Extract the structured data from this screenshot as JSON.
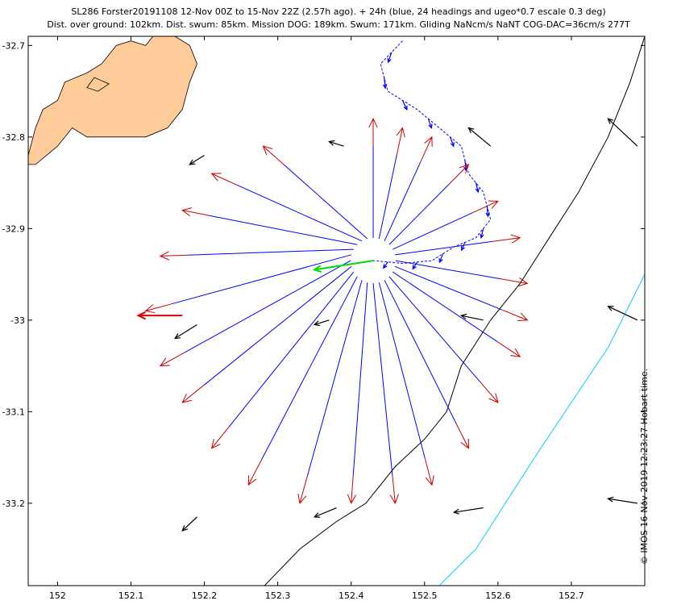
{
  "title_line1": "SL286 Forster20191108 12-Nov 00Z to 15-Nov 22Z (2.57h ago). + 24h (blue, 24 headings and ugeo*0.7 escale 0.3 deg)",
  "title_line2": "Dist. over ground: 102km. Dist. swum: 85km. Mission DOG: 189km. Swum: 171km. Gliding NaNcm/s NaNT COG-DAC=36cm/s 277T",
  "credit": "© IMOS 16-Nov-2019 12:23:27 Hobart time.",
  "colors": {
    "land": "#FFCC99",
    "track": "#0000FF",
    "arrow_tip": "#CC0000",
    "current_arrow": "#000000",
    "contour_black": "#000000",
    "contour_cyan": "#00CCFF",
    "latest_heading": "#00DD00",
    "best_heading": "#DD0000"
  },
  "chart_data": {
    "type": "map-vector-plot",
    "xlim": [
      151.96,
      152.8
    ],
    "ylim": [
      -33.29,
      -32.69
    ],
    "x_ticks": [
      {
        "value": 152.0,
        "label": "152"
      },
      {
        "value": 152.1,
        "label": "152.1"
      },
      {
        "value": 152.2,
        "label": "152.2"
      },
      {
        "value": 152.3,
        "label": "152.3"
      },
      {
        "value": 152.4,
        "label": "152.4"
      },
      {
        "value": 152.5,
        "label": "152.5"
      },
      {
        "value": 152.6,
        "label": "152.6"
      },
      {
        "value": 152.7,
        "label": "152.7"
      }
    ],
    "y_ticks": [
      {
        "value": -32.7,
        "label": "-32.7"
      },
      {
        "value": -32.8,
        "label": "-32.8"
      },
      {
        "value": -32.9,
        "label": "-32.9"
      },
      {
        "value": -33.0,
        "label": "-33"
      },
      {
        "value": -33.1,
        "label": "-33.1"
      },
      {
        "value": -33.2,
        "label": "-33.2"
      }
    ],
    "land": [
      [
        151.96,
        -32.82
      ],
      [
        151.97,
        -32.79
      ],
      [
        151.98,
        -32.77
      ],
      [
        152.0,
        -32.76
      ],
      [
        152.01,
        -32.74
      ],
      [
        152.04,
        -32.73
      ],
      [
        152.06,
        -32.72
      ],
      [
        152.08,
        -32.7
      ],
      [
        152.1,
        -32.695
      ],
      [
        152.12,
        -32.7
      ],
      [
        152.13,
        -32.69
      ],
      [
        152.16,
        -32.69
      ],
      [
        152.18,
        -32.7
      ],
      [
        152.19,
        -32.72
      ],
      [
        152.18,
        -32.74
      ],
      [
        152.17,
        -32.77
      ],
      [
        152.15,
        -32.79
      ],
      [
        152.12,
        -32.8
      ],
      [
        152.08,
        -32.8
      ],
      [
        152.04,
        -32.8
      ],
      [
        152.02,
        -32.79
      ],
      [
        152.0,
        -32.81
      ],
      [
        151.97,
        -32.83
      ],
      [
        151.96,
        -32.83
      ]
    ],
    "islands": [
      [
        152.04,
        -32.746
      ],
      [
        152.05,
        -32.735
      ],
      [
        152.07,
        -32.742
      ],
      [
        152.055,
        -32.75
      ]
    ],
    "contour_black": [
      [
        152.27,
        -33.3
      ],
      [
        152.33,
        -33.25
      ],
      [
        152.38,
        -33.22
      ],
      [
        152.42,
        -33.2
      ],
      [
        152.46,
        -33.16
      ],
      [
        152.5,
        -33.13
      ],
      [
        152.53,
        -33.1
      ],
      [
        152.55,
        -33.05
      ],
      [
        152.59,
        -33.0
      ],
      [
        152.63,
        -32.96
      ],
      [
        152.67,
        -32.91
      ],
      [
        152.71,
        -32.86
      ],
      [
        152.75,
        -32.8
      ],
      [
        152.78,
        -32.74
      ],
      [
        152.8,
        -32.69
      ]
    ],
    "contour_cyan": [
      [
        152.52,
        -33.29
      ],
      [
        152.57,
        -33.25
      ],
      [
        152.61,
        -33.2
      ],
      [
        152.65,
        -33.15
      ],
      [
        152.7,
        -33.09
      ],
      [
        152.75,
        -33.03
      ],
      [
        152.8,
        -32.95
      ]
    ],
    "track": [
      [
        152.47,
        -32.695
      ],
      [
        152.44,
        -32.72
      ],
      [
        152.45,
        -32.75
      ],
      [
        152.49,
        -32.77
      ],
      [
        152.52,
        -32.79
      ],
      [
        152.55,
        -32.81
      ],
      [
        152.56,
        -32.84
      ],
      [
        152.58,
        -32.86
      ],
      [
        152.59,
        -32.89
      ],
      [
        152.57,
        -32.91
      ],
      [
        152.54,
        -32.92
      ],
      [
        152.51,
        -32.935
      ],
      [
        152.47,
        -32.938
      ],
      [
        152.43,
        -32.935
      ]
    ],
    "glider_position": [
      152.43,
      -32.935
    ],
    "headings": [
      {
        "bearing": 0,
        "tip": [
          152.43,
          -32.78
        ]
      },
      {
        "bearing": 15,
        "tip": [
          152.47,
          -32.79
        ]
      },
      {
        "bearing": 30,
        "tip": [
          152.51,
          -32.8
        ]
      },
      {
        "bearing": 45,
        "tip": [
          152.56,
          -32.83
        ]
      },
      {
        "bearing": 60,
        "tip": [
          152.6,
          -32.87
        ]
      },
      {
        "bearing": 75,
        "tip": [
          152.63,
          -32.91
        ]
      },
      {
        "bearing": 90,
        "tip": [
          152.64,
          -32.96
        ]
      },
      {
        "bearing": 105,
        "tip": [
          152.64,
          -33.0
        ]
      },
      {
        "bearing": 120,
        "tip": [
          152.63,
          -33.04
        ]
      },
      {
        "bearing": 135,
        "tip": [
          152.6,
          -33.09
        ]
      },
      {
        "bearing": 150,
        "tip": [
          152.56,
          -33.14
        ]
      },
      {
        "bearing": 165,
        "tip": [
          152.51,
          -33.18
        ]
      },
      {
        "bearing": 180,
        "tip": [
          152.46,
          -33.2
        ]
      },
      {
        "bearing": 195,
        "tip": [
          152.4,
          -33.2
        ]
      },
      {
        "bearing": 210,
        "tip": [
          152.33,
          -33.2
        ]
      },
      {
        "bearing": 225,
        "tip": [
          152.26,
          -33.18
        ]
      },
      {
        "bearing": 240,
        "tip": [
          152.21,
          -33.14
        ]
      },
      {
        "bearing": 255,
        "tip": [
          152.17,
          -33.09
        ]
      },
      {
        "bearing": 270,
        "tip": [
          152.14,
          -33.05
        ]
      },
      {
        "bearing": 285,
        "tip": [
          152.12,
          -32.99
        ]
      },
      {
        "bearing": 300,
        "tip": [
          152.14,
          -32.93
        ]
      },
      {
        "bearing": 315,
        "tip": [
          152.17,
          -32.88
        ]
      },
      {
        "bearing": 330,
        "tip": [
          152.21,
          -32.84
        ]
      },
      {
        "bearing": 345,
        "tip": [
          152.28,
          -32.81
        ]
      }
    ],
    "latest_heading": {
      "from": [
        152.43,
        -32.935
      ],
      "to": [
        152.35,
        -32.945
      ]
    },
    "best_heading": {
      "from": [
        152.17,
        -32.995
      ],
      "to": [
        152.11,
        -32.995
      ]
    },
    "currents": [
      {
        "from": [
          152.2,
          -32.82
        ],
        "to": [
          152.18,
          -32.83
        ]
      },
      {
        "from": [
          152.39,
          -32.81
        ],
        "to": [
          152.37,
          -32.805
        ]
      },
      {
        "from": [
          152.59,
          -32.81
        ],
        "to": [
          152.56,
          -32.79
        ]
      },
      {
        "from": [
          152.79,
          -32.81
        ],
        "to": [
          152.75,
          -32.78
        ]
      },
      {
        "from": [
          152.19,
          -33.005
        ],
        "to": [
          152.16,
          -33.02
        ]
      },
      {
        "from": [
          152.37,
          -33.0
        ],
        "to": [
          152.35,
          -33.005
        ]
      },
      {
        "from": [
          152.58,
          -33.0
        ],
        "to": [
          152.55,
          -32.995
        ]
      },
      {
        "from": [
          152.79,
          -33.0
        ],
        "to": [
          152.75,
          -32.985
        ]
      },
      {
        "from": [
          152.19,
          -33.215
        ],
        "to": [
          152.17,
          -33.23
        ]
      },
      {
        "from": [
          152.38,
          -33.205
        ],
        "to": [
          152.35,
          -33.215
        ]
      },
      {
        "from": [
          152.58,
          -33.205
        ],
        "to": [
          152.54,
          -33.21
        ]
      },
      {
        "from": [
          152.79,
          -33.2
        ],
        "to": [
          152.75,
          -33.195
        ]
      }
    ]
  }
}
